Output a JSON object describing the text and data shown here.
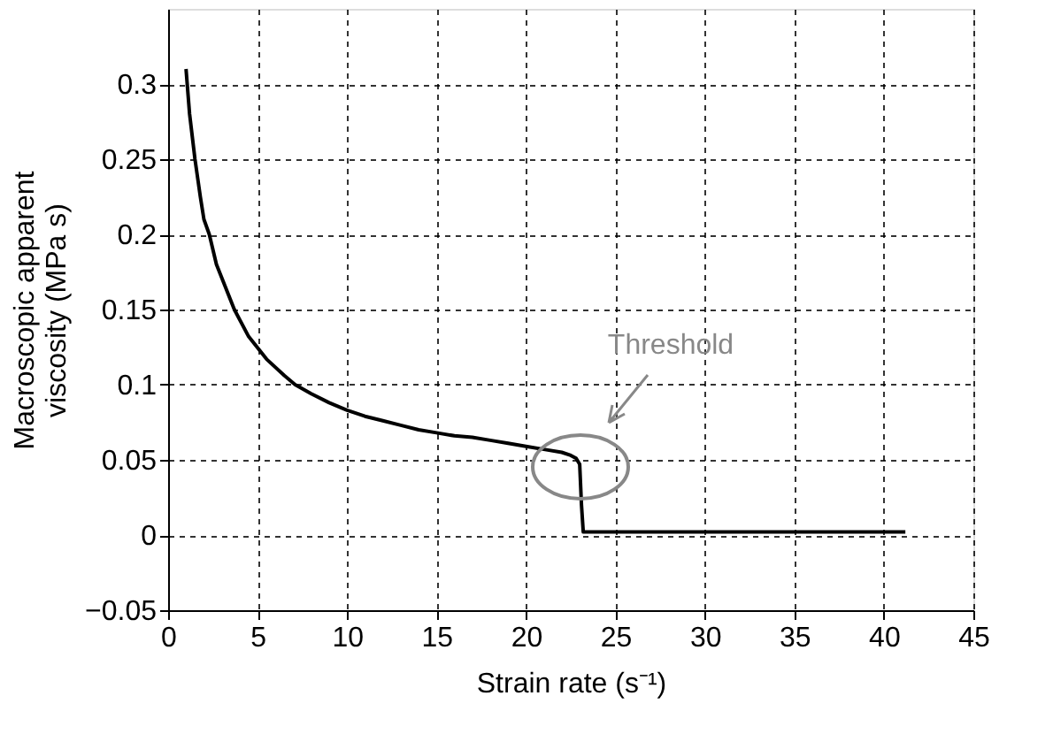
{
  "chart_data": {
    "type": "line",
    "xlabel": "Strain rate (s⁻¹)",
    "ylabel": "Macroscopic apparent\nviscosity (MPa s)",
    "x": [
      1,
      1.2,
      1.5,
      1.8,
      2,
      2.3,
      2.7,
      3.2,
      3.7,
      4.5,
      5.5,
      6.5,
      7.1,
      8,
      9,
      10,
      11,
      12,
      13,
      14,
      15,
      16,
      17,
      18,
      19,
      20,
      21,
      22,
      22.5,
      22.8,
      23,
      23.1,
      23.2,
      25,
      30,
      35,
      41.2
    ],
    "series": [
      {
        "color": "#000000",
        "values": [
          0.31,
          0.28,
          0.25,
          0.225,
          0.21,
          0.2,
          0.18,
          0.165,
          0.15,
          0.132,
          0.117,
          0.106,
          0.1,
          0.094,
          0.088,
          0.083,
          0.079,
          0.076,
          0.073,
          0.07,
          0.068,
          0.066,
          0.065,
          0.063,
          0.061,
          0.059,
          0.057,
          0.055,
          0.053,
          0.051,
          0.047,
          0.02,
          0.002,
          0.002,
          0.002,
          0.002,
          0.002
        ]
      }
    ],
    "xlim": [
      0,
      45
    ],
    "xticks": [
      0,
      5,
      10,
      15,
      20,
      25,
      30,
      35,
      40,
      45
    ],
    "ylim": [
      -0.05,
      0.35
    ],
    "yticks": [
      {
        "value": -0.05,
        "label": "−0.05"
      },
      0,
      0.05,
      0.1,
      0.15,
      0.2,
      0.25,
      0.3
    ],
    "grid": true,
    "line_style": "solid",
    "marker": "none",
    "annotations": [
      "Threshold"
    ]
  }
}
